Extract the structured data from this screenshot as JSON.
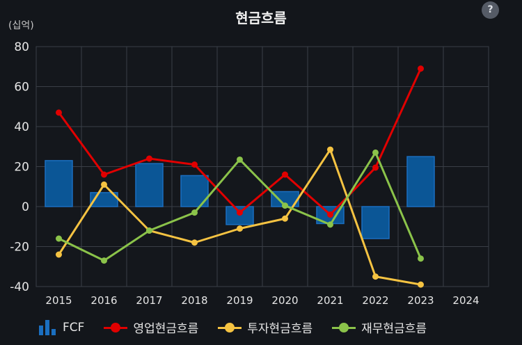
{
  "title": "현금흐름",
  "unit_label": "(십억)",
  "help_label": "?",
  "legend": [
    {
      "key": "fcf",
      "label": "FCF",
      "kind": "bar",
      "color": "#1b6fc0"
    },
    {
      "key": "op",
      "label": "영업현금흐름",
      "kind": "line",
      "color": "#e10000"
    },
    {
      "key": "inv",
      "label": "투자현금흐름",
      "kind": "line",
      "color": "#f5c342"
    },
    {
      "key": "fin",
      "label": "재무현금흐름",
      "kind": "line",
      "color": "#8bc34a"
    }
  ],
  "chart_data": {
    "type": "bar",
    "title": "현금흐름",
    "ylabel": "(십억)",
    "categories": [
      "2015",
      "2016",
      "2017",
      "2018",
      "2019",
      "2020",
      "2021",
      "2022",
      "2023",
      "2024"
    ],
    "ylim": [
      -40,
      80
    ],
    "yticks": [
      80,
      60,
      40,
      20,
      0,
      -20,
      -40
    ],
    "grid": true,
    "legend_position": "bottom",
    "bars": {
      "name": "FCF",
      "color": "#1b6fc0",
      "values": [
        23,
        7,
        21.5,
        15.5,
        -9,
        7.5,
        -8.5,
        -16,
        25,
        null
      ]
    },
    "series": [
      {
        "name": "영업현금흐름",
        "type": "line",
        "color": "#e10000",
        "values": [
          47,
          16,
          24,
          21,
          -3,
          16,
          -4,
          19.5,
          69,
          null
        ]
      },
      {
        "name": "투자현금흐름",
        "type": "line",
        "color": "#f5c342",
        "values": [
          -24,
          11,
          -12,
          -18,
          -11,
          -6,
          28.5,
          -35,
          -39,
          null
        ]
      },
      {
        "name": "재무현금흐름",
        "type": "line",
        "color": "#8bc34a",
        "values": [
          -16,
          -27,
          -12,
          -3,
          23.5,
          0.5,
          -9,
          27,
          -26,
          null
        ]
      }
    ]
  }
}
